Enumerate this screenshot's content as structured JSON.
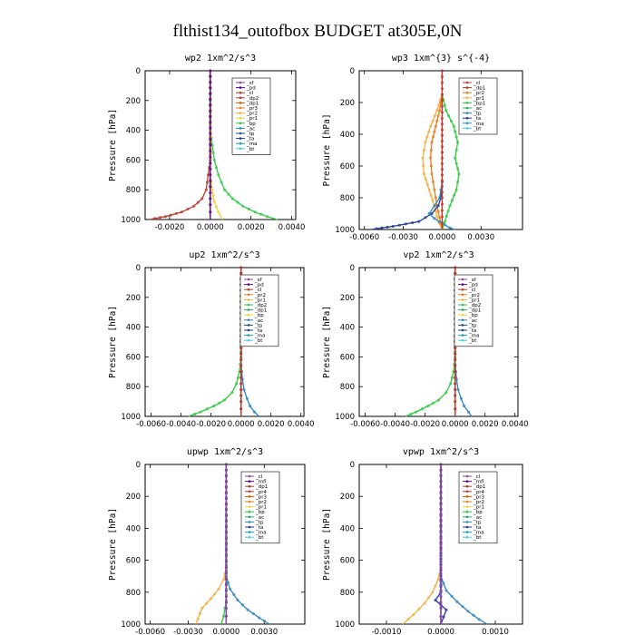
{
  "figure_title": "flthist134_outofbox  BUDGET at305E,0N",
  "chart_data": [
    {
      "type": "line",
      "title": "wp2   1xm^2/s^3",
      "ylabel": "Pressure [hPa]",
      "xlim": [
        -0.0032,
        0.0042
      ],
      "ylim": [
        1000,
        0
      ],
      "xticks": [
        -0.002,
        0.0,
        0.002,
        0.004
      ],
      "xtick_labels": [
        "-0.0020",
        "0.0000",
        "0.0020",
        "0.0040"
      ],
      "yticks": [
        0,
        200,
        400,
        600,
        800,
        1000
      ],
      "legend": [
        "_sf",
        "_pd",
        "_cl",
        "_dp2",
        "_dp1",
        "_pr3",
        "_pr2",
        "_pr1",
        "_bp",
        "_ac",
        "_tp",
        "_ta",
        "_ma",
        "_bt"
      ],
      "legend_colors": [
        "#8e44ad",
        "#5b0a91",
        "#c0392b",
        "#b03a2e",
        "#d35400",
        "#e67e22",
        "#f5b041",
        "#f4d03f",
        "#2ecc40",
        "#2e86c1",
        "#1a5276",
        "#1f3a93",
        "#17a2b8",
        "#48c9f0"
      ],
      "series": [
        {
          "color": "#2ecc40",
          "x": [
            0,
            0,
            0.0001,
            0.0002,
            0.0004,
            0.0007,
            0.0011,
            0.0016,
            0.0022,
            0.0028,
            0.0033
          ],
          "y": [
            0,
            400,
            500,
            600,
            700,
            800,
            860,
            910,
            950,
            980,
            1000
          ]
        },
        {
          "color": "#c0392b",
          "x": [
            0,
            0,
            -0.0001,
            -0.0002,
            -0.0004,
            -0.0008,
            -0.0014,
            -0.0022,
            -0.003
          ],
          "y": [
            0,
            600,
            700,
            800,
            860,
            910,
            950,
            980,
            1000
          ]
        },
        {
          "color": "#f4d03f",
          "x": [
            0,
            0,
            0.0001,
            0.0002,
            0.0004,
            0.0006
          ],
          "y": [
            0,
            700,
            800,
            880,
            950,
            1000
          ]
        },
        {
          "color": "#b03a2e",
          "x": [
            0,
            0,
            0,
            0
          ],
          "y": [
            0,
            500,
            900,
            1000
          ]
        },
        {
          "color": "#5b0a91",
          "x": [
            0,
            0,
            0,
            0
          ],
          "y": [
            0,
            500,
            900,
            1000
          ]
        }
      ]
    },
    {
      "type": "line",
      "title": "wp3   1xm^{3} s^{-4}",
      "ylabel": "Pressure [hPa]",
      "xlim": [
        -0.0064,
        0.0062
      ],
      "ylim": [
        1000,
        0
      ],
      "xticks": [
        -0.006,
        -0.003,
        0.0,
        0.003
      ],
      "xtick_labels": [
        "-0.0060",
        "-0.0030",
        "0.0000",
        "0.0030"
      ],
      "yticks": [
        0,
        200,
        400,
        600,
        800,
        1000
      ],
      "legend": [
        "_cl",
        "_dp1",
        "_pr2",
        "_pr1",
        "_bp1",
        "_ac",
        "_tp",
        "_ta",
        "_ma",
        "_bt"
      ],
      "legend_colors": [
        "#c0392b",
        "#b03a2e",
        "#e67e22",
        "#f5b041",
        "#2ecc40",
        "#27ae60",
        "#2e86c1",
        "#1f3a93",
        "#17a2b8",
        "#48c9f0"
      ],
      "series": [
        {
          "color": "#2ecc40",
          "x": [
            0,
            0.0003,
            0.0009,
            0.0012,
            0.001,
            0.0013,
            0.0011,
            0.0006,
            0.0002,
            0
          ],
          "y": [
            150,
            250,
            350,
            450,
            550,
            650,
            750,
            850,
            950,
            1000
          ]
        },
        {
          "color": "#f5b041",
          "x": [
            0,
            -0.0004,
            -0.0009,
            -0.0013,
            -0.0015,
            -0.0014,
            -0.001,
            -0.0006,
            -0.0003,
            0
          ],
          "y": [
            150,
            250,
            350,
            450,
            550,
            650,
            750,
            850,
            950,
            1000
          ]
        },
        {
          "color": "#e67e22",
          "x": [
            0,
            -0.0002,
            -0.0005,
            -0.0008,
            -0.0009,
            -0.0008,
            -0.0006,
            -0.0004,
            0
          ],
          "y": [
            150,
            250,
            350,
            450,
            550,
            650,
            750,
            850,
            1000
          ]
        },
        {
          "color": "#1f3a93",
          "x": [
            0,
            -0.0001,
            -0.0003,
            -0.0008,
            -0.0018,
            -0.0038,
            -0.0055
          ],
          "y": [
            700,
            800,
            850,
            900,
            950,
            980,
            1000
          ]
        },
        {
          "color": "#2e86c1",
          "x": [
            0,
            -0.0002,
            -0.0006,
            -0.001,
            -0.0006,
            -0.0002,
            0.0002,
            0.0006,
            0.001
          ],
          "y": [
            700,
            800,
            850,
            900,
            930,
            950,
            970,
            990,
            1000
          ]
        },
        {
          "color": "#c0392b",
          "x": [
            0,
            0,
            0,
            0
          ],
          "y": [
            0,
            300,
            800,
            1000
          ]
        }
      ]
    },
    {
      "type": "line",
      "title": "up2   1xm^2/s^3",
      "ylabel": "Pressure [hPa]",
      "xlim": [
        -0.0064,
        0.0042
      ],
      "ylim": [
        1000,
        0
      ],
      "xticks": [
        -0.006,
        -0.004,
        -0.002,
        0.0,
        0.002,
        0.004
      ],
      "xtick_labels": [
        "-0.0060",
        "-0.0040",
        "-0.0020",
        "0.0000",
        "0.0020",
        "0.0040"
      ],
      "yticks": [
        0,
        200,
        400,
        600,
        800,
        1000
      ],
      "legend": [
        "_sf",
        "_pd",
        "_cl",
        "_pr2",
        "_pr1",
        "_dp2",
        "_dp1",
        "_bp",
        "_ac",
        "_tp",
        "_ta",
        "_ma",
        "_bt"
      ],
      "legend_colors": [
        "#8e44ad",
        "#5b0a91",
        "#c0392b",
        "#e67e22",
        "#f5b041",
        "#2ecc40",
        "#27ae60",
        "#f4d03f",
        "#2e86c1",
        "#1a5276",
        "#1f3a93",
        "#17a2b8",
        "#48c9f0"
      ],
      "series": [
        {
          "color": "#2ecc40",
          "x": [
            0,
            0,
            -0.0001,
            -0.0003,
            -0.0006,
            -0.0011,
            -0.0018,
            -0.0027,
            -0.0035
          ],
          "y": [
            0,
            600,
            700,
            780,
            840,
            890,
            930,
            970,
            1000
          ]
        },
        {
          "color": "#2e86c1",
          "x": [
            0,
            0,
            0.0001,
            0.0002,
            0.0004,
            0.0006,
            0.0009,
            0.0012
          ],
          "y": [
            0,
            650,
            750,
            820,
            880,
            930,
            970,
            1000
          ]
        },
        {
          "color": "#b03a2e",
          "x": [
            0,
            0,
            0,
            0
          ],
          "y": [
            0,
            500,
            900,
            1000
          ]
        },
        {
          "color": "#c0392b",
          "x": [
            0,
            0,
            0,
            0
          ],
          "y": [
            0,
            500,
            900,
            1000
          ]
        }
      ]
    },
    {
      "type": "line",
      "title": "vp2   1xm^2/s^3",
      "ylabel": "Pressure [hPa]",
      "xlim": [
        -0.0064,
        0.0042
      ],
      "ylim": [
        1000,
        0
      ],
      "xticks": [
        -0.006,
        -0.004,
        -0.002,
        0.0,
        0.002,
        0.004
      ],
      "xtick_labels": [
        "-0.0060",
        "-0.0040",
        "-0.0020",
        "0.0000",
        "0.0020",
        "0.0040"
      ],
      "yticks": [
        0,
        200,
        400,
        600,
        800,
        1000
      ],
      "legend": [
        "_sf",
        "_pd",
        "_cl",
        "_pr2",
        "_pr1",
        "_dp2",
        "_dp1",
        "_bp",
        "_ac",
        "_tp",
        "_ta",
        "_ma",
        "_bt"
      ],
      "legend_colors": [
        "#8e44ad",
        "#5b0a91",
        "#c0392b",
        "#e67e22",
        "#f5b041",
        "#2ecc40",
        "#27ae60",
        "#f4d03f",
        "#2e86c1",
        "#1a5276",
        "#1f3a93",
        "#17a2b8",
        "#48c9f0"
      ],
      "series": [
        {
          "color": "#2ecc40",
          "x": [
            0,
            0,
            -0.0001,
            -0.0003,
            -0.0006,
            -0.0011,
            -0.0018,
            -0.0026,
            -0.0033
          ],
          "y": [
            0,
            600,
            700,
            780,
            840,
            890,
            930,
            970,
            1000
          ]
        },
        {
          "color": "#2e86c1",
          "x": [
            0,
            0,
            0.0001,
            0.0002,
            0.0004,
            0.0006,
            0.0009,
            0.0011
          ],
          "y": [
            0,
            650,
            750,
            820,
            880,
            930,
            970,
            1000
          ]
        },
        {
          "color": "#b03a2e",
          "x": [
            0,
            0,
            0,
            0
          ],
          "y": [
            0,
            500,
            900,
            1000
          ]
        },
        {
          "color": "#c0392b",
          "x": [
            0,
            0,
            0,
            0
          ],
          "y": [
            0,
            500,
            900,
            1000
          ]
        }
      ]
    },
    {
      "type": "line",
      "title": "upwp   1xm^2/s^3",
      "ylabel": "Pressure [hPa]",
      "xlim": [
        -0.0064,
        0.0062
      ],
      "ylim": [
        1000,
        0
      ],
      "xticks": [
        -0.006,
        -0.003,
        0.0,
        0.003
      ],
      "xtick_labels": [
        "-0.0060",
        "-0.0030",
        "0.0000",
        "0.0030"
      ],
      "yticks": [
        0,
        200,
        400,
        600,
        800,
        1000
      ],
      "legend": [
        "_cl",
        "_mfl",
        "_dp1",
        "_pr4",
        "_pr3",
        "_pr2",
        "_pr1",
        "_bp",
        "_ac",
        "_tp",
        "_ta",
        "_ma",
        "_bt"
      ],
      "legend_colors": [
        "#8e44ad",
        "#5b0a91",
        "#b03a2e",
        "#c0392b",
        "#d35400",
        "#e67e22",
        "#f4d03f",
        "#2ecc40",
        "#27ae60",
        "#2e86c1",
        "#1f3a93",
        "#17a2b8",
        "#48c9f0"
      ],
      "series": [
        {
          "color": "#f5b041",
          "x": [
            0,
            0,
            -0.0002,
            -0.0006,
            -0.0012,
            -0.0019,
            -0.0024
          ],
          "y": [
            0,
            650,
            720,
            780,
            840,
            900,
            1000
          ]
        },
        {
          "color": "#2e86c1",
          "x": [
            0,
            0,
            0.0003,
            0.0009,
            0.0017,
            0.0026,
            0.0034
          ],
          "y": [
            0,
            700,
            780,
            850,
            910,
            960,
            1000
          ]
        },
        {
          "color": "#2ecc40",
          "x": [
            0,
            0,
            -0.0002,
            -0.0004
          ],
          "y": [
            0,
            850,
            950,
            1000
          ]
        },
        {
          "color": "#5b0a91",
          "x": [
            0,
            0,
            0,
            0
          ],
          "y": [
            0,
            500,
            900,
            1000
          ]
        },
        {
          "color": "#8e44ad",
          "x": [
            0,
            0,
            0,
            0
          ],
          "y": [
            0,
            500,
            900,
            1000
          ]
        }
      ]
    },
    {
      "type": "line",
      "title": "vpwp   1xm^2/s^3",
      "ylabel": "Pressure [hPa]",
      "xlim": [
        -0.0015,
        0.0015
      ],
      "ylim": [
        1000,
        0
      ],
      "xticks": [
        -0.001,
        0.0,
        0.001
      ],
      "xtick_labels": [
        "-0.0010",
        "0.0000",
        "0.0010"
      ],
      "yticks": [
        0,
        200,
        400,
        600,
        800,
        1000
      ],
      "legend": [
        "_cl",
        "_mfl",
        "_dp1",
        "_pr4",
        "_pr3",
        "_pr2",
        "_pr1",
        "_bp",
        "_ac",
        "_tp",
        "_ta",
        "_ma",
        "_bt"
      ],
      "legend_colors": [
        "#8e44ad",
        "#5b0a91",
        "#b03a2e",
        "#c0392b",
        "#d35400",
        "#e67e22",
        "#f4d03f",
        "#2ecc40",
        "#27ae60",
        "#2e86c1",
        "#1f3a93",
        "#17a2b8",
        "#48c9f0"
      ],
      "series": [
        {
          "color": "#f5b041",
          "x": [
            0,
            0,
            -5e-05,
            -0.00015,
            -0.0003,
            -0.0005,
            -0.0007
          ],
          "y": [
            0,
            650,
            720,
            800,
            870,
            940,
            1000
          ]
        },
        {
          "color": "#2e86c1",
          "x": [
            0,
            0,
            0.0001,
            0.0003,
            0.0005,
            0.0007,
            0.00085
          ],
          "y": [
            0,
            700,
            790,
            860,
            920,
            970,
            1000
          ]
        },
        {
          "color": "#1f3a93",
          "x": [
            0,
            0,
            -0.0001,
            0,
            0.0001,
            0
          ],
          "y": [
            0,
            800,
            850,
            880,
            910,
            1000
          ]
        },
        {
          "color": "#5b0a91",
          "x": [
            0,
            0,
            0,
            0
          ],
          "y": [
            0,
            500,
            900,
            1000
          ]
        },
        {
          "color": "#8e44ad",
          "x": [
            0,
            0,
            0,
            0
          ],
          "y": [
            0,
            500,
            900,
            1000
          ]
        }
      ]
    }
  ]
}
